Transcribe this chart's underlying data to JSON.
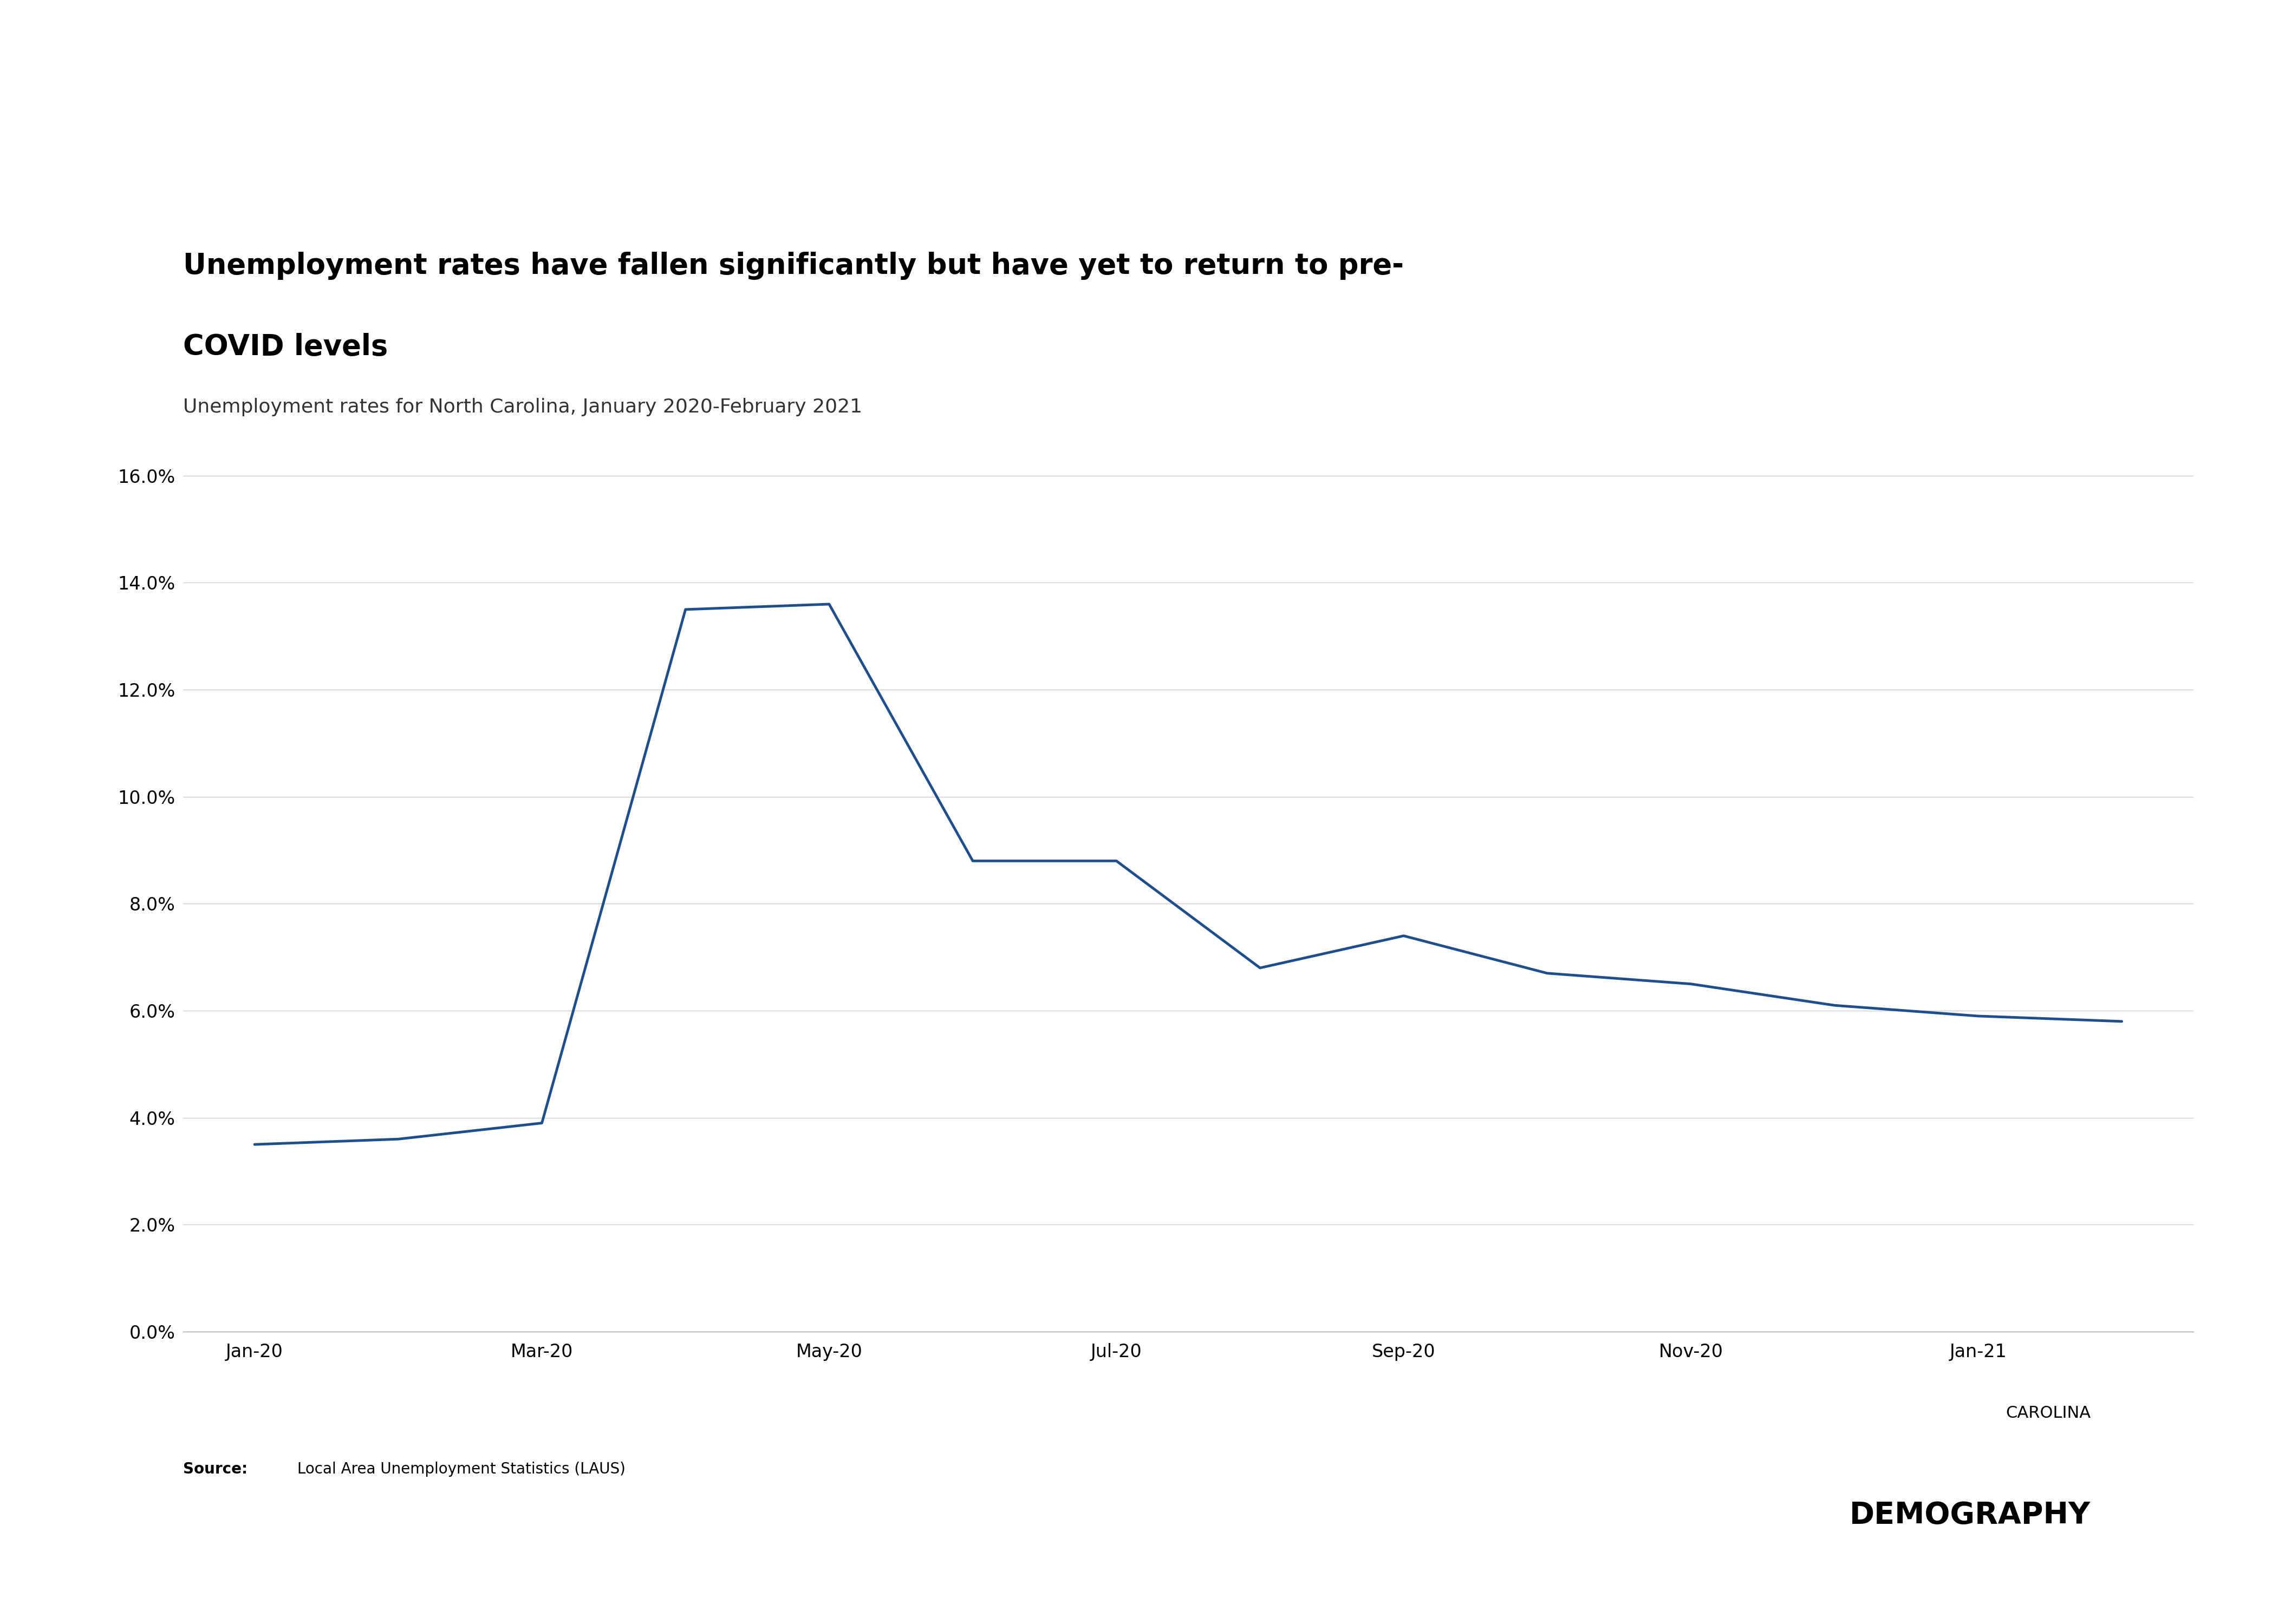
{
  "title_line1": "Unemployment rates have fallen significantly but have yet to return to pre-",
  "title_line2": "COVID levels",
  "subtitle": "Unemployment rates for North Carolina, January 2020-February 2021",
  "source_bold": "Source:",
  "source_rest": " Local Area Unemployment Statistics (LAUS)",
  "x_tick_labels": [
    "Jan-20",
    "Mar-20",
    "May-20",
    "Jul-20",
    "Sep-20",
    "Nov-20",
    "Jan-21"
  ],
  "x_tick_indices": [
    0,
    2,
    4,
    6,
    8,
    10,
    12
  ],
  "values": [
    3.5,
    3.6,
    3.9,
    13.5,
    13.6,
    8.8,
    8.8,
    6.8,
    7.4,
    6.7,
    6.5,
    6.1,
    5.9,
    5.8
  ],
  "line_color": "#1f4e8c",
  "line_width": 3.5,
  "ylim": [
    0,
    17
  ],
  "yticks": [
    0,
    2,
    4,
    6,
    8,
    10,
    12,
    14,
    16
  ],
  "grid_color": "#cccccc",
  "background_color": "#ffffff",
  "title_fontsize": 38,
  "subtitle_fontsize": 26,
  "tick_fontsize": 24,
  "source_fontsize": 20,
  "brand_carolina_fontsize": 22,
  "brand_demography_fontsize": 40,
  "bottom_bar_color": "#1f3a6e",
  "bottom_bar_height": 0.032
}
